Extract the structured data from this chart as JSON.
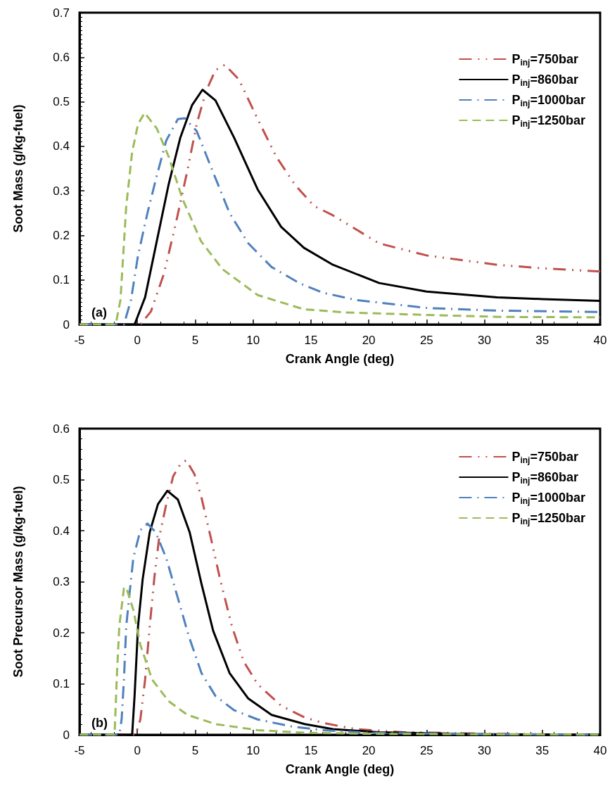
{
  "chart_data": [
    {
      "type": "line",
      "xlabel": "Crank Angle (deg)",
      "ylabel": "Soot Mass (g/kg-fuel)",
      "annotations": [
        "(a)"
      ],
      "xlim": [
        -5,
        40
      ],
      "xticks": [
        -5,
        0,
        5,
        10,
        15,
        20,
        25,
        30,
        35,
        40
      ],
      "ylim": [
        0,
        0.7
      ],
      "yticks": [
        0,
        0.1,
        0.2,
        0.3,
        0.4,
        0.5,
        0.6,
        0.7
      ],
      "grid": false,
      "legend": "top right",
      "marker": "none",
      "series": [
        {
          "name": "P$_{inj}$=750bar",
          "color": "#c0504d",
          "line_style": "dashdotdot",
          "x": [
            -5,
            0.26,
            1.17,
            2.29,
            3.3,
            4.32,
            5.13,
            5.94,
            6.75,
            7.56,
            8.78,
            10.4,
            12.0,
            13.64,
            15.27,
            16.9,
            20.9,
            25,
            31.1,
            35,
            40
          ],
          "values": [
            0,
            0,
            0.029,
            0.113,
            0.224,
            0.345,
            0.45,
            0.524,
            0.571,
            0.583,
            0.55,
            0.461,
            0.377,
            0.313,
            0.266,
            0.245,
            0.182,
            0.155,
            0.134,
            0.126,
            0.119
          ]
        },
        {
          "name": "P$_{inj}$=860bar",
          "color": "#000000",
          "line_style": "solid",
          "x": [
            -5,
            -0.24,
            0.67,
            1.68,
            2.7,
            3.71,
            4.72,
            5.63,
            6.75,
            8.37,
            10.4,
            12.43,
            14.4,
            16.9,
            20.9,
            25,
            31.1,
            35,
            40
          ],
          "values": [
            0,
            0,
            0.061,
            0.187,
            0.314,
            0.419,
            0.492,
            0.527,
            0.503,
            0.419,
            0.303,
            0.219,
            0.172,
            0.134,
            0.093,
            0.074,
            0.061,
            0.057,
            0.053
          ]
        },
        {
          "name": "P$_{inj}$=1000bar",
          "color": "#4f81bd",
          "line_style": "dashdot",
          "x": [
            -5,
            -1.16,
            -0.55,
            0.06,
            0.87,
            1.68,
            2.5,
            3.5,
            4.11,
            5.13,
            6.34,
            7.97,
            9.59,
            11.6,
            14.05,
            16.08,
            18.9,
            25,
            31.1,
            40
          ],
          "values": [
            0,
            0,
            0.055,
            0.155,
            0.25,
            0.334,
            0.413,
            0.461,
            0.463,
            0.434,
            0.355,
            0.25,
            0.182,
            0.129,
            0.092,
            0.071,
            0.055,
            0.037,
            0.031,
            0.028
          ]
        },
        {
          "name": "P$_{inj}$=1250bar",
          "color": "#9bbb59",
          "line_style": "dashed",
          "x": [
            -5,
            -1.87,
            -1.46,
            -0.96,
            -0.45,
            0.06,
            0.63,
            1.68,
            2.7,
            3.9,
            5.5,
            7.36,
            10.4,
            14.4,
            18,
            22.95,
            31.1,
            40
          ],
          "values": [
            0,
            0,
            0.055,
            0.266,
            0.387,
            0.45,
            0.475,
            0.44,
            0.377,
            0.282,
            0.187,
            0.124,
            0.066,
            0.034,
            0.027,
            0.023,
            0.017,
            0.016
          ]
        }
      ]
    },
    {
      "type": "line",
      "xlabel": "Crank Angle (deg)",
      "ylabel": "Soot Precursor Mass (g/kg-fuel)",
      "annotations": [
        "(b)"
      ],
      "xlim": [
        -5,
        40
      ],
      "xticks": [
        -5,
        0,
        5,
        10,
        15,
        20,
        25,
        30,
        35,
        40
      ],
      "ylim": [
        0,
        0.6
      ],
      "yticks": [
        0,
        0.1,
        0.2,
        0.3,
        0.4,
        0.5,
        0.6
      ],
      "grid": false,
      "legend": "top right",
      "marker": "none",
      "series": [
        {
          "name": "P$_{inj}$=750bar",
          "color": "#c0504d",
          "line_style": "dashdotdot",
          "x": [
            -5,
            -0.15,
            0.26,
            0.67,
            1.07,
            1.48,
            1.89,
            2.5,
            3.1,
            3.71,
            4.22,
            4.93,
            5.54,
            6.34,
            7.15,
            8.17,
            9.18,
            10.4,
            12.43,
            14.45,
            16.08,
            18.9,
            23,
            30,
            40
          ],
          "values": [
            0,
            0,
            0.03,
            0.108,
            0.213,
            0.31,
            0.387,
            0.452,
            0.507,
            0.53,
            0.538,
            0.511,
            0.465,
            0.387,
            0.305,
            0.213,
            0.144,
            0.099,
            0.057,
            0.034,
            0.023,
            0.011,
            0.005,
            0.002,
            0
          ]
        },
        {
          "name": "P$_{inj}$=860bar",
          "color": "#000000",
          "line_style": "solid",
          "x": [
            -5,
            -0.45,
            -0.24,
            0.06,
            0.46,
            1.07,
            1.78,
            2.59,
            3.5,
            4.52,
            5.54,
            6.55,
            7.97,
            9.59,
            11.6,
            14.45,
            16.9,
            20.9,
            30,
            40
          ],
          "values": [
            0,
            0,
            0.076,
            0.213,
            0.305,
            0.397,
            0.452,
            0.478,
            0.461,
            0.397,
            0.296,
            0.204,
            0.121,
            0.071,
            0.039,
            0.021,
            0.011,
            0.005,
            0.001,
            0
          ]
        },
        {
          "name": "P$_{inj}$=1000bar",
          "color": "#4f81bd",
          "line_style": "dashdot",
          "x": [
            -5,
            -1.56,
            -1.36,
            -1.16,
            -0.96,
            -0.65,
            -0.35,
            0.26,
            0.87,
            1.58,
            2.5,
            3.5,
            4.42,
            5.54,
            6.75,
            8.37,
            10.4,
            13.4,
            16.08,
            20,
            30,
            40
          ],
          "values": [
            0,
            0,
            0.03,
            0.108,
            0.213,
            0.282,
            0.346,
            0.401,
            0.414,
            0.397,
            0.346,
            0.268,
            0.195,
            0.121,
            0.076,
            0.048,
            0.03,
            0.016,
            0.009,
            0.004,
            0.001,
            0
          ]
        },
        {
          "name": "P$_{inj}$=1250bar",
          "color": "#9bbb59",
          "line_style": "dashed",
          "x": [
            -5,
            -1.97,
            -1.76,
            -1.56,
            -1.16,
            -0.96,
            -0.35,
            0.26,
            1.28,
            2.7,
            4.32,
            6.75,
            10.4,
            14.4,
            20,
            40
          ],
          "values": [
            0,
            0,
            0.121,
            0.213,
            0.287,
            0.289,
            0.245,
            0.176,
            0.108,
            0.066,
            0.039,
            0.021,
            0.009,
            0.004,
            0.002,
            0
          ]
        }
      ]
    }
  ]
}
